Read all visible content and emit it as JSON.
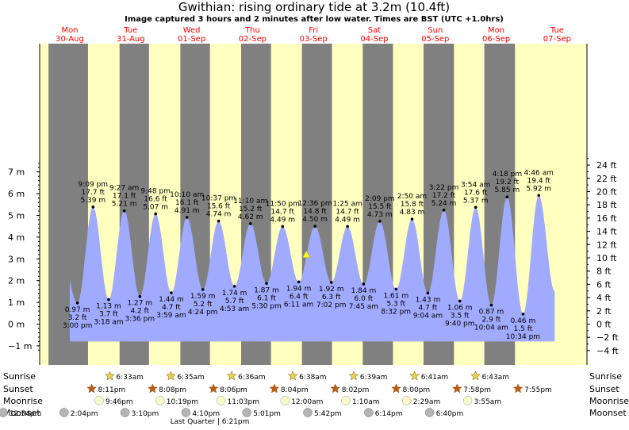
{
  "title": "Gwithian: rising  ordinary tide at 3.2m (10.4ft)",
  "subtitle": "Image captured 3 hours and 2 minutes after low water. Times are BST (UTC +1.0hrs)",
  "days": [
    {
      "name": "Mon",
      "date": "30-Aug",
      "x": 0
    },
    {
      "name": "Tue",
      "date": "31-Aug",
      "x": 1
    },
    {
      "name": "Wed",
      "date": "01-Sep",
      "x": 2
    },
    {
      "name": "Thu",
      "date": "02-Sep",
      "x": 3
    },
    {
      "name": "Fri",
      "date": "03-Sep",
      "x": 4
    },
    {
      "name": "Sat",
      "date": "04-Sep",
      "x": 5
    },
    {
      "name": "Sun",
      "date": "05-Sep",
      "x": 6
    },
    {
      "name": "Mon",
      "date": "06-Sep",
      "x": 7
    },
    {
      "name": "Tue",
      "date": "07-Sep",
      "x": 8
    }
  ],
  "chart_data": {
    "type": "area",
    "title": "Gwithian: rising  ordinary tide at 3.2m (10.4ft)",
    "xlabel": "",
    "ylabel": "",
    "x_unit": "days after 30-Aug 00:00 BST",
    "ylim": [
      -1.3,
      7.9
    ],
    "y_ticks_m": [
      -1,
      0,
      1,
      2,
      3,
      4,
      5,
      6,
      7
    ],
    "y_ticks_ft": [
      -4,
      -2,
      0,
      2,
      4,
      6,
      8,
      10,
      12,
      14,
      16,
      18,
      20,
      22,
      24
    ],
    "grid": false,
    "night_bands": [
      [
        -0.35,
        0.299
      ],
      [
        0.817,
        1.3
      ],
      [
        1.815,
        2.301
      ],
      [
        2.813,
        3.303
      ],
      [
        3.811,
        4.304
      ],
      [
        4.809,
        5.305
      ],
      [
        5.807,
        6.306
      ],
      [
        6.805,
        7.308
      ]
    ],
    "series": [
      {
        "name": "",
        "extremes": [
          {
            "x": -0.25,
            "type": "high",
            "height_m": 5.45,
            "label": [],
            "hide": true
          },
          {
            "x": 0.125,
            "type": "low",
            "height_m": 0.97,
            "label": [
              "0.97 m",
              "3.2 ft",
              "3:00 pm"
            ]
          },
          {
            "x": 0.3813,
            "type": "high",
            "height_m": 5.39,
            "label": [
              "9:09 pm",
              "17.7 ft",
              "5.39 m"
            ]
          },
          {
            "x": 0.6375,
            "type": "low",
            "height_m": 1.13,
            "label": [
              "1.13 m",
              "3.7 ft",
              "3:18 am"
            ]
          },
          {
            "x": 0.8938,
            "type": "high",
            "height_m": 5.21,
            "label": [
              "9:27 am",
              "17.1 ft",
              "5.21 m"
            ]
          },
          {
            "x": 1.15,
            "type": "low",
            "height_m": 1.27,
            "label": [
              "1.27 m",
              "4.2 ft",
              "3:36 pm"
            ]
          },
          {
            "x": 1.4083,
            "type": "high",
            "height_m": 5.07,
            "label": [
              "9:48 pm",
              "16.6 ft",
              "5.07 m"
            ]
          },
          {
            "x": 1.666,
            "type": "low",
            "height_m": 1.44,
            "label": [
              "1.44 m",
              "4.7 ft",
              "3:59 am"
            ]
          },
          {
            "x": 1.9236,
            "type": "high",
            "height_m": 4.91,
            "label": [
              "10:10 am",
              "16.1 ft",
              "4.91 m"
            ]
          },
          {
            "x": 2.1833,
            "type": "low",
            "height_m": 1.59,
            "label": [
              "1.59 m",
              "5.2 ft",
              "4:24 pm"
            ]
          },
          {
            "x": 2.4424,
            "type": "high",
            "height_m": 4.74,
            "label": [
              "10:37 pm",
              "15.6 ft",
              "4.74 m"
            ]
          },
          {
            "x": 2.7035,
            "type": "low",
            "height_m": 1.74,
            "label": [
              "1.74 m",
              "5.7 ft",
              "4:53 am"
            ]
          },
          {
            "x": 2.9653,
            "type": "high",
            "height_m": 4.62,
            "label": [
              "11:10 am",
              "15.2 ft",
              "4.62 m"
            ]
          },
          {
            "x": 3.2292,
            "type": "low",
            "height_m": 1.87,
            "label": [
              "1.87 m",
              "6.1 ft",
              "5:30 pm"
            ]
          },
          {
            "x": 3.4931,
            "type": "high",
            "height_m": 4.49,
            "label": [
              "11:50 pm",
              "14.7 ft",
              "4.49 m"
            ]
          },
          {
            "x": 3.7576,
            "type": "low",
            "height_m": 1.94,
            "label": [
              "1.94 m",
              "6.4 ft",
              "6:11 am"
            ]
          },
          {
            "x": 4.025,
            "type": "high",
            "height_m": 4.5,
            "label": [
              "12:36 pm",
              "14.8 ft",
              "4.50 m"
            ]
          },
          {
            "x": 4.2931,
            "type": "low",
            "height_m": 1.92,
            "label": [
              "1.92 m",
              "6.3 ft",
              "7:02 pm"
            ]
          },
          {
            "x": 4.559,
            "type": "high",
            "height_m": 4.49,
            "label": [
              "1:25 am",
              "14.7 ft",
              "4.49 m"
            ]
          },
          {
            "x": 4.8229,
            "type": "low",
            "height_m": 1.84,
            "label": [
              "1.84 m",
              "6.0 ft",
              "7:45 am"
            ]
          },
          {
            "x": 5.0896,
            "type": "high",
            "height_m": 4.73,
            "label": [
              "2:09 pm",
              "15.5 ft",
              "4.73 m"
            ]
          },
          {
            "x": 5.3556,
            "type": "low",
            "height_m": 1.61,
            "label": [
              "1.61 m",
              "5.3 ft",
              "8:32 pm"
            ]
          },
          {
            "x": 5.6181,
            "type": "high",
            "height_m": 4.83,
            "label": [
              "2:50 am",
              "15.8 ft",
              "4.83 m"
            ]
          },
          {
            "x": 5.8778,
            "type": "low",
            "height_m": 1.43,
            "label": [
              "1.43 m",
              "4.7 ft",
              "9:04 am"
            ]
          },
          {
            "x": 6.1403,
            "type": "high",
            "height_m": 5.24,
            "label": [
              "3:22 pm",
              "17.2 ft",
              "5.24 m"
            ]
          },
          {
            "x": 6.4028,
            "type": "low",
            "height_m": 1.06,
            "label": [
              "1.06 m",
              "3.5 ft",
              "9:40 pm"
            ]
          },
          {
            "x": 6.6625,
            "type": "high",
            "height_m": 5.37,
            "label": [
              "3:54 am",
              "17.6 ft",
              "5.37 m"
            ]
          },
          {
            "x": 6.9194,
            "type": "low",
            "height_m": 0.87,
            "label": [
              "0.87 m",
              "2.9 ft",
              "10:04 am"
            ]
          },
          {
            "x": 7.1792,
            "type": "high",
            "height_m": 5.85,
            "label": [
              "4:18 pm",
              "19.2 ft",
              "5.85 m"
            ]
          },
          {
            "x": 7.4403,
            "type": "low",
            "height_m": 0.46,
            "label": [
              "0.46 m",
              "1.5 ft",
              "10:34 pm"
            ]
          },
          {
            "x": 7.6986,
            "type": "high",
            "height_m": 5.92,
            "label": [
              "4:46 am",
              "19.4 ft",
              "5.92 m"
            ]
          },
          {
            "x": 7.96,
            "type": "low",
            "height_m": 1.5,
            "label": [],
            "hide": true
          }
        ]
      }
    ],
    "current_marker": {
      "x": 3.884,
      "height_m": 3.2
    }
  },
  "events": {
    "row_labels": [
      "Sunrise",
      "Sunset",
      "Moonrise",
      "Moonset"
    ],
    "sunrise": [
      {
        "x": 1.281,
        "t": "6:33am"
      },
      {
        "x": 2.283,
        "t": "6:35am"
      },
      {
        "x": 3.283,
        "t": "6:36am"
      },
      {
        "x": 4.285,
        "t": "6:38am"
      },
      {
        "x": 5.285,
        "t": "6:39am"
      },
      {
        "x": 6.285,
        "t": "6:41am"
      },
      {
        "x": 7.285,
        "t": "6:43am"
      }
    ],
    "sunset": [
      {
        "x": 0.84,
        "t": "8:11pm"
      },
      {
        "x": 1.84,
        "t": "8:08pm"
      },
      {
        "x": 2.84,
        "t": "8:06pm"
      },
      {
        "x": 3.84,
        "t": "8:04pm"
      },
      {
        "x": 4.84,
        "t": "8:02pm"
      },
      {
        "x": 5.84,
        "t": "8:00pm"
      },
      {
        "x": 6.84,
        "t": "7:58pm"
      },
      {
        "x": 7.84,
        "t": "7:55pm"
      }
    ],
    "moonrise": [
      {
        "x": 0.95,
        "t": "9:46pm"
      },
      {
        "x": 1.95,
        "t": "10:19pm"
      },
      {
        "x": 2.95,
        "t": "11:03pm"
      },
      {
        "x": 4.0,
        "t": "12:00am"
      },
      {
        "x": 5.0,
        "t": "1:10am"
      },
      {
        "x": 6.0,
        "t": "2:29am"
      },
      {
        "x": 7.0,
        "t": "3:55am"
      }
    ],
    "moonset": [
      {
        "x": 0.0,
        "t": "12:54pm"
      },
      {
        "x": 1.0,
        "t": "2:04pm"
      },
      {
        "x": 2.0,
        "t": "3:10pm"
      },
      {
        "x": 3.0,
        "t": "4:10pm"
      },
      {
        "x": 4.0,
        "t": "5:01pm"
      },
      {
        "x": 5.0,
        "t": "5:42pm"
      },
      {
        "x": 6.0,
        "t": "6:14pm"
      },
      {
        "x": 7.0,
        "t": "6:40pm"
      }
    ],
    "moon_phase": {
      "x": 2.0,
      "t": "Last Quarter | 6:21pm"
    }
  },
  "colors": {
    "day": "#ffffc0",
    "night": "#808080",
    "water": "#a0aaff",
    "day_label": "#ff0000",
    "marker": "#ffff00",
    "star": "#e8d050",
    "sunset_star": "#c05a14",
    "moon": "#fafac8",
    "moonset": "#b4b4b4"
  }
}
